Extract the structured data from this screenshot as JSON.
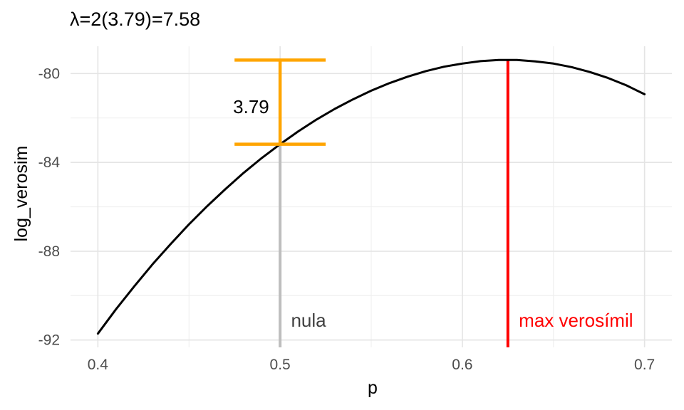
{
  "title": "λ=2(3.79)=7.58",
  "chart_data": {
    "type": "line",
    "title": "λ=2(3.79)=7.58",
    "xlabel": "p",
    "ylabel": "log_verosim",
    "xlim": [
      0.385,
      0.715
    ],
    "ylim": [
      -92.33,
      -78.77
    ],
    "x_ticks": [
      0.4,
      0.5,
      0.6,
      0.7
    ],
    "x_tick_labels": [
      "0.4",
      "0.5",
      "0.6",
      "0.7"
    ],
    "x_minor_ticks": [
      0.45,
      0.55,
      0.65
    ],
    "y_ticks": [
      -80,
      -84,
      -88,
      -92
    ],
    "y_tick_labels": [
      "-80",
      "-84",
      "-88",
      "-92"
    ],
    "y_minor_ticks": [
      -82,
      -86,
      -90
    ],
    "grid": {
      "major_color": "#e4e4e4",
      "minor_color": "#efefef",
      "major_width": 1.6,
      "minor_width": 1.1
    },
    "curve": {
      "name": "log-likelihood-curve",
      "color": "#000000",
      "width": 3,
      "points": [
        [
          0.4,
          -91.71
        ],
        [
          0.41,
          -90.61
        ],
        [
          0.42,
          -89.58
        ],
        [
          0.43,
          -88.59
        ],
        [
          0.44,
          -87.67
        ],
        [
          0.45,
          -86.79
        ],
        [
          0.46,
          -85.97
        ],
        [
          0.47,
          -85.2
        ],
        [
          0.48,
          -84.47
        ],
        [
          0.49,
          -83.8
        ],
        [
          0.5,
          -83.18
        ],
        [
          0.51,
          -82.6
        ],
        [
          0.52,
          -82.07
        ],
        [
          0.53,
          -81.59
        ],
        [
          0.54,
          -81.16
        ],
        [
          0.55,
          -80.77
        ],
        [
          0.56,
          -80.43
        ],
        [
          0.57,
          -80.14
        ],
        [
          0.58,
          -79.89
        ],
        [
          0.59,
          -79.69
        ],
        [
          0.6,
          -79.55
        ],
        [
          0.61,
          -79.44
        ],
        [
          0.62,
          -79.39
        ],
        [
          0.625,
          -79.388
        ],
        [
          0.63,
          -79.39
        ],
        [
          0.64,
          -79.45
        ],
        [
          0.65,
          -79.55
        ],
        [
          0.66,
          -79.71
        ],
        [
          0.67,
          -79.93
        ],
        [
          0.68,
          -80.2
        ],
        [
          0.69,
          -80.53
        ],
        [
          0.7,
          -80.93
        ]
      ]
    },
    "vlines": [
      {
        "name": "nula-line",
        "x": 0.5,
        "y_top": -83.18,
        "color": "#bebebe",
        "width": 4,
        "label": "nula",
        "label_color": "#3f3f3f",
        "label_x": 0.506,
        "label_y": -91.4
      },
      {
        "name": "max-verosimil-line",
        "x": 0.625,
        "y_top": -79.39,
        "color": "#ff0000",
        "width": 4,
        "label": "max verosímil",
        "label_color": "#ff0000",
        "label_x": 0.631,
        "label_y": -91.4
      }
    ],
    "errorbar": {
      "name": "loglik-difference-errorbar",
      "x": 0.5,
      "y0": -83.18,
      "y1": -79.39,
      "cap_halfwidth": 0.025,
      "color": "#ffa500",
      "width": 4.5,
      "label": "3.79",
      "label_color": "#000000",
      "label_x": 0.494,
      "label_y": -81.5
    }
  }
}
